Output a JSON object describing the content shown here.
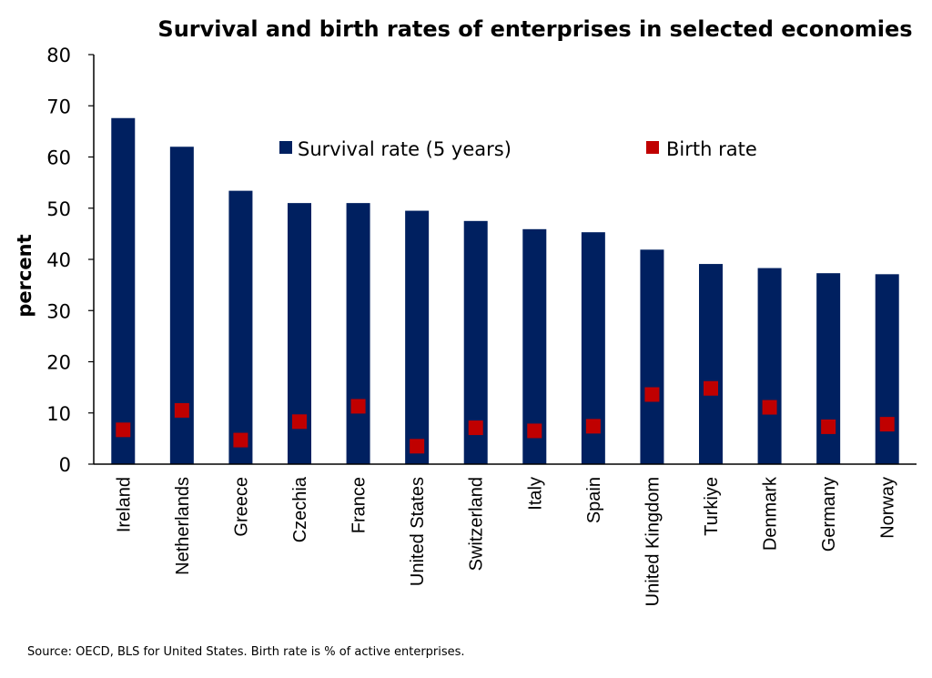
{
  "chart_data": {
    "type": "bar",
    "title": "Survival and birth rates of enterprises in selected economies",
    "ylabel": "percent",
    "xlabel": "",
    "ylim": [
      0,
      80
    ],
    "yticks": [
      0,
      10,
      20,
      30,
      40,
      50,
      60,
      70,
      80
    ],
    "grid": false,
    "legend_position": "top",
    "categories": [
      "Ireland",
      "Netherlands",
      "Greece",
      "Czechia",
      "France",
      "United States",
      "Switzerland",
      "Italy",
      "Spain",
      "United Kingdom",
      "Turkiye",
      "Denmark",
      "Germany",
      "Norway"
    ],
    "series": [
      {
        "name": "Survival rate (5 years)",
        "type": "bar",
        "color": "#002060",
        "values": [
          67.6,
          62.0,
          53.4,
          51.0,
          51.0,
          49.5,
          47.5,
          45.9,
          45.3,
          41.9,
          39.1,
          38.3,
          37.3,
          37.1
        ]
      },
      {
        "name": "Birth rate",
        "type": "marker",
        "color": "#C00000",
        "values": [
          6.7,
          10.5,
          4.7,
          8.3,
          11.3,
          3.5,
          7.1,
          6.5,
          7.4,
          13.6,
          14.8,
          11.1,
          7.3,
          7.8
        ]
      }
    ],
    "source": "Source: OECD, BLS for United States. Birth rate is % of active enterprises."
  }
}
